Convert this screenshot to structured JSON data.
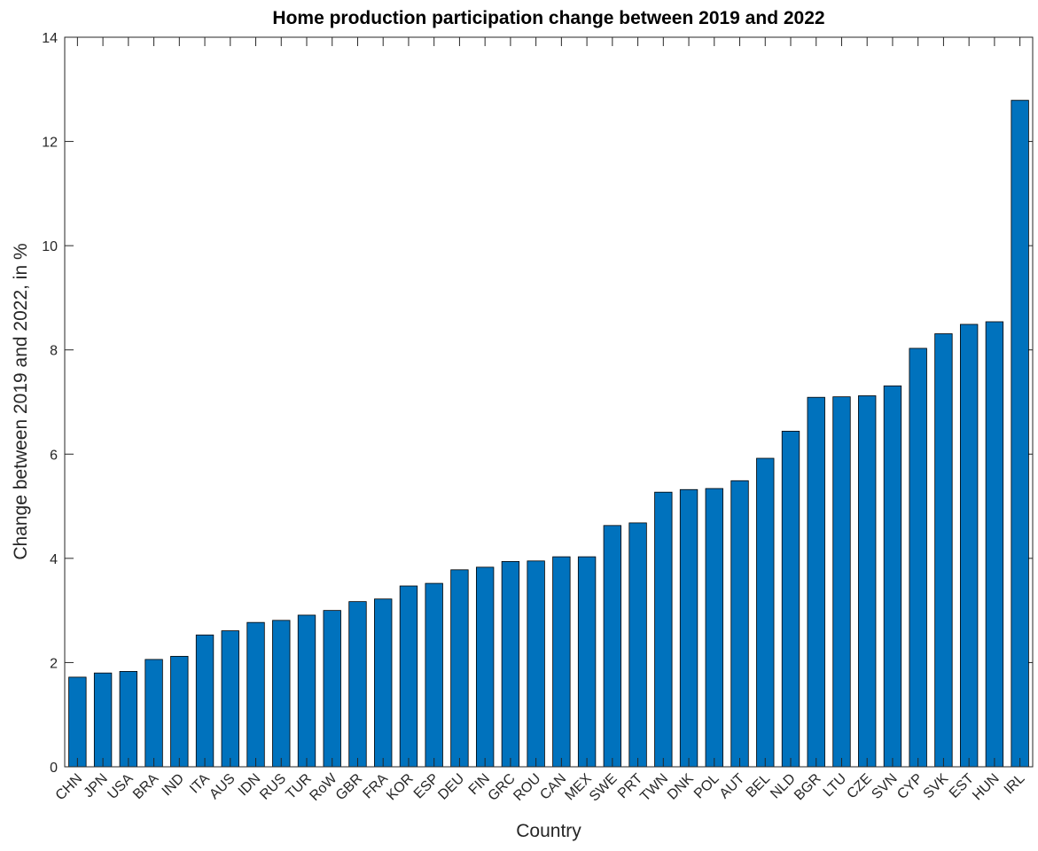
{
  "chart_data": {
    "type": "bar",
    "title": "Home production participation change between 2019 and 2022",
    "x_label": "Country",
    "y_label": "Change between 2019 and 2022, in %",
    "categories": [
      "CHN",
      "JPN",
      "USA",
      "BRA",
      "IND",
      "ITA",
      "AUS",
      "IDN",
      "RUS",
      "TUR",
      "RoW",
      "GBR",
      "FRA",
      "KOR",
      "ESP",
      "DEU",
      "FIN",
      "GRC",
      "ROU",
      "CAN",
      "MEX",
      "SWE",
      "PRT",
      "TWN",
      "DNK",
      "POL",
      "AUT",
      "BEL",
      "NLD",
      "BGR",
      "LTU",
      "CZE",
      "SVN",
      "CYP",
      "SVK",
      "EST",
      "HUN",
      "IRL"
    ],
    "values": [
      1.72,
      1.8,
      1.83,
      2.06,
      2.12,
      2.53,
      2.61,
      2.77,
      2.81,
      2.91,
      3.0,
      3.17,
      3.22,
      3.47,
      3.52,
      3.78,
      3.83,
      3.94,
      3.95,
      4.03,
      4.03,
      4.63,
      4.68,
      5.27,
      5.32,
      5.34,
      5.49,
      5.92,
      6.44,
      7.09,
      7.1,
      7.12,
      7.31,
      8.03,
      8.31,
      8.49,
      8.54,
      12.79
    ],
    "color": "#0072bd",
    "ylim": [
      0,
      14
    ],
    "yticks": [
      0,
      2,
      4,
      6,
      8,
      10,
      12,
      14
    ],
    "grid": false
  }
}
